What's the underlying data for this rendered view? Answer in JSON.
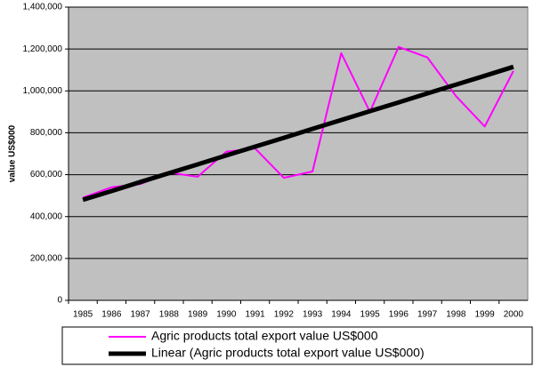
{
  "chart_data": {
    "type": "line",
    "y_label": "value US$000",
    "categories": [
      "1985",
      "1986",
      "1987",
      "1988",
      "1989",
      "1990",
      "1991",
      "1992",
      "1993",
      "1994",
      "1995",
      "1996",
      "1997",
      "1998",
      "1999",
      "2000"
    ],
    "series": [
      {
        "name": "Agric products total export value US$000",
        "color": "#ff00ff",
        "width": 2,
        "values": [
          490000,
          540000,
          555000,
          610000,
          590000,
          710000,
          725000,
          585000,
          615000,
          1180000,
          900000,
          1210000,
          1160000,
          975000,
          830000,
          1095000
        ]
      },
      {
        "name": "Linear (Agric products total export value US$000)",
        "color": "#000000",
        "width": 5,
        "values": [
          480000,
          522000,
          565000,
          607000,
          649000,
          692000,
          734000,
          776000,
          819000,
          861000,
          903000,
          945000,
          988000,
          1030000,
          1072000,
          1115000
        ]
      }
    ],
    "ylim": [
      0,
      1400000
    ],
    "yticks": [
      0,
      {
        "value": 200000,
        "label": "200,000"
      },
      {
        "value": 400000,
        "label": "400,000"
      },
      {
        "value": 600000,
        "label": "600,000"
      },
      {
        "value": 800000,
        "label": "800,000"
      },
      {
        "value": 1000000,
        "label": "1,000,000"
      },
      {
        "value": 1200000,
        "label": "1,200,000"
      },
      {
        "value": 1400000,
        "label": "1,400,000"
      }
    ],
    "grid": true,
    "plot_background": "#c0c0c0",
    "legend": "bottom"
  }
}
